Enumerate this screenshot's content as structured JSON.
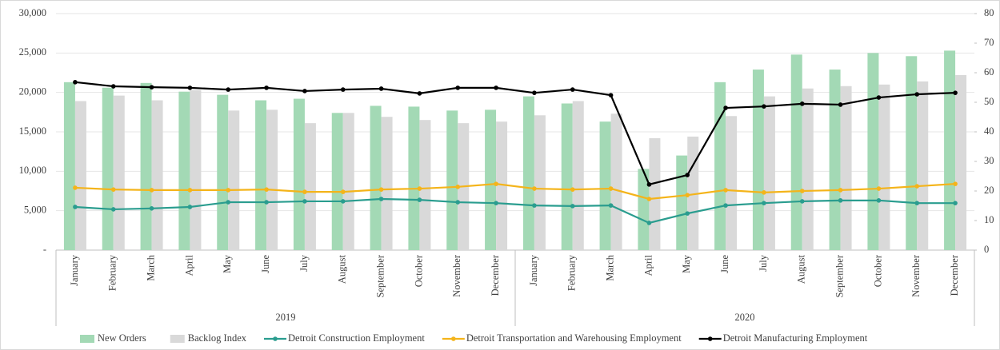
{
  "chart_data": {
    "type": "combo",
    "categories": [
      "January",
      "February",
      "March",
      "April",
      "May",
      "June",
      "July",
      "August",
      "September",
      "October",
      "November",
      "December",
      "January",
      "February",
      "March",
      "April",
      "May",
      "June",
      "July",
      "August",
      "September",
      "October",
      "November",
      "December"
    ],
    "groups": [
      "2019",
      "2020"
    ],
    "series": [
      {
        "name": "New Orders",
        "type": "bar",
        "color": "#a3d9b5",
        "values": [
          21300,
          20600,
          21200,
          20100,
          19700,
          19000,
          19200,
          17400,
          18300,
          18200,
          17700,
          17800,
          19500,
          18600,
          16300,
          10300,
          12000,
          21300,
          22900,
          24800,
          22900,
          25000,
          24600,
          25300
        ]
      },
      {
        "name": "Backlog Index",
        "type": "bar",
        "color": "#d9d9d9",
        "values": [
          18900,
          19600,
          19000,
          20300,
          17700,
          17800,
          16100,
          17400,
          16900,
          16500,
          16100,
          16300,
          17100,
          18900,
          17300,
          14200,
          14400,
          17000,
          19500,
          20500,
          20800,
          21000,
          21400,
          22200
        ]
      },
      {
        "name": "Detroit Construction Employment",
        "type": "line",
        "axis": "y2",
        "color": "#2a9d8f",
        "values": [
          14.6,
          13.8,
          14.1,
          14.6,
          16.2,
          16.2,
          16.5,
          16.5,
          17.3,
          17.0,
          16.2,
          15.9,
          15.1,
          14.9,
          15.1,
          9.2,
          12.4,
          15.1,
          15.9,
          16.5,
          16.8,
          16.8,
          15.9,
          15.9
        ]
      },
      {
        "name": "Detroit Transportation and Warehousing Employment",
        "type": "line",
        "axis": "y2",
        "color": "#f4b41a",
        "values": [
          21.1,
          20.5,
          20.3,
          20.3,
          20.3,
          20.5,
          19.7,
          19.7,
          20.5,
          20.8,
          21.4,
          22.4,
          20.8,
          20.5,
          20.8,
          17.3,
          18.6,
          20.3,
          19.5,
          20.0,
          20.3,
          20.8,
          21.6,
          22.4
        ]
      },
      {
        "name": "Detroit Manufacturing Employment",
        "type": "line",
        "axis": "y2",
        "color": "#000000",
        "values": [
          56.8,
          55.4,
          55.1,
          54.9,
          54.3,
          54.9,
          53.8,
          54.3,
          54.6,
          53.0,
          54.9,
          54.9,
          53.2,
          54.3,
          52.4,
          22.2,
          25.4,
          48.1,
          48.6,
          49.5,
          49.2,
          51.6,
          52.7,
          53.2
        ]
      }
    ],
    "ylim": [
      0,
      30000
    ],
    "yticks": [
      {
        "value": 0,
        "label": "-"
      },
      {
        "value": 5000,
        "label": "5,000"
      },
      {
        "value": 10000,
        "label": "10,000"
      },
      {
        "value": 15000,
        "label": "15,000"
      },
      {
        "value": 20000,
        "label": "20,000"
      },
      {
        "value": 25000,
        "label": "25,000"
      },
      {
        "value": 30000,
        "label": "30,000"
      }
    ],
    "y2lim": [
      0,
      80
    ],
    "y2ticks": [
      0,
      10,
      20,
      30,
      40,
      50,
      60,
      70,
      80
    ],
    "grid": true,
    "legend": "bottom"
  }
}
